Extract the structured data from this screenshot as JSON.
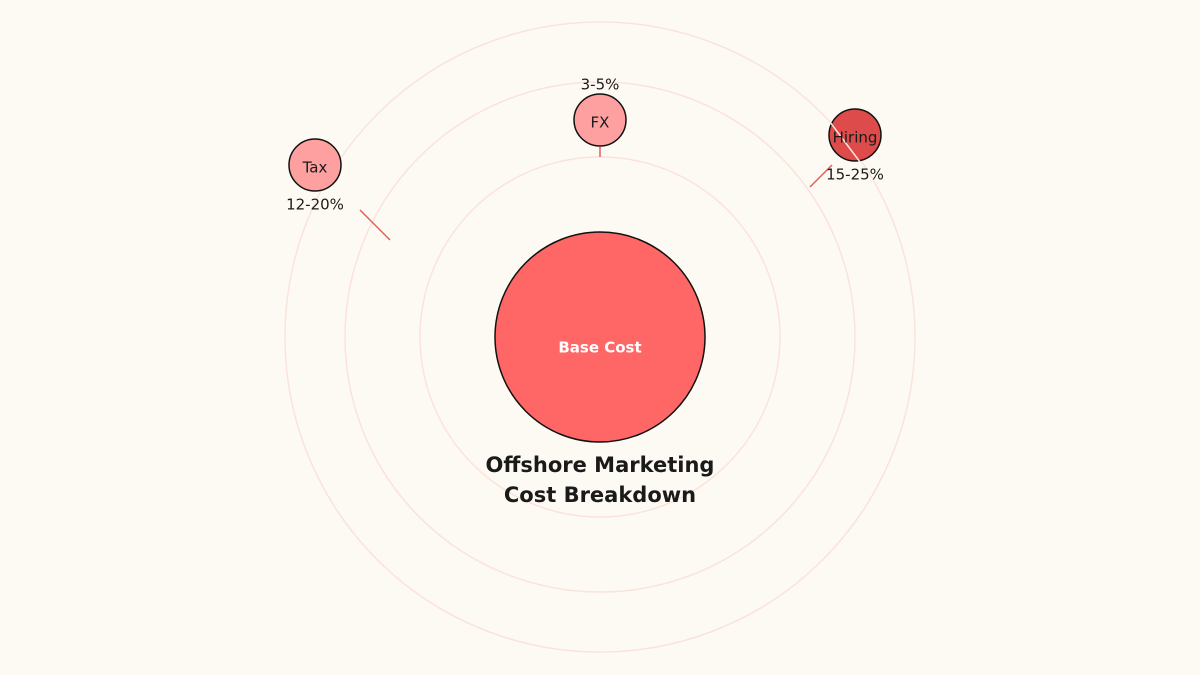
{
  "title": [
    "Offshore Marketing",
    "Cost Breakdown"
  ],
  "center": {
    "label": "Base Cost"
  },
  "nodes": [
    {
      "label": "Tax",
      "value": "12-20%"
    },
    {
      "label": "FX",
      "value": "3-5%"
    },
    {
      "label": "Hiring",
      "value": "15-25%"
    }
  ]
}
